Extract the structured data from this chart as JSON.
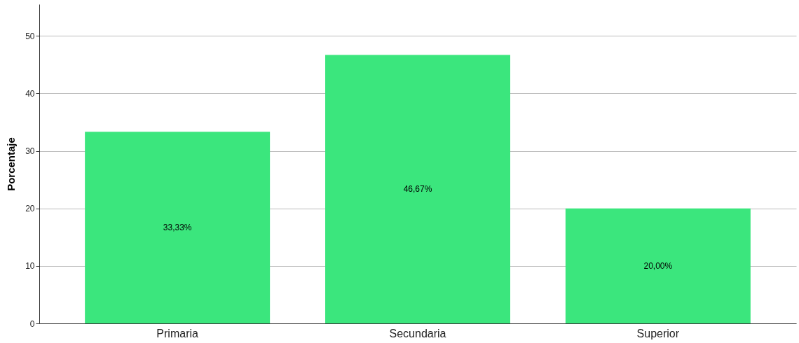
{
  "chart_data": {
    "type": "bar",
    "ylabel": "Porcentaje",
    "categories": [
      "Primaria",
      "Secundaria",
      "Superior"
    ],
    "values": [
      33.33,
      46.67,
      20.0
    ],
    "value_labels": [
      "33,33%",
      "46,67%",
      "20,00%"
    ],
    "color": "#3be67d",
    "ylim": [
      0,
      55.5
    ],
    "yticks": [
      0,
      10,
      20,
      30,
      40,
      50
    ],
    "grid": "y"
  }
}
